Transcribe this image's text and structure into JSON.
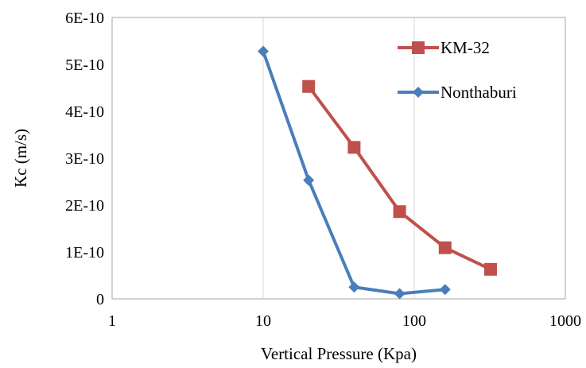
{
  "chart_data": {
    "type": "line",
    "x_scale": "log",
    "xlim": [
      1,
      1000
    ],
    "ylim": [
      0,
      6e-10
    ],
    "x_ticks": [
      1,
      10,
      100,
      1000
    ],
    "x_tick_labels": [
      "1",
      "10",
      "100",
      "1000"
    ],
    "y_ticks": [
      0,
      1e-10,
      2e-10,
      3e-10,
      4e-10,
      5e-10,
      6e-10
    ],
    "y_tick_labels": [
      "0",
      "1E-10",
      "2E-10",
      "3E-10",
      "4E-10",
      "5E-10",
      "6E-10"
    ],
    "xlabel": "Vertical Pressure (Kpa)",
    "ylabel": "Kc (m/s)",
    "grid": "vertical",
    "legend": "top-right",
    "series": [
      {
        "name": "KM-32",
        "color": "#c0504d",
        "marker": "square",
        "x": [
          20,
          40,
          80,
          160,
          320
        ],
        "y": [
          4.53e-10,
          3.23e-10,
          1.86e-10,
          1.09e-10,
          6.3e-11
        ]
      },
      {
        "name": "Nonthaburi",
        "color": "#4a7ebb",
        "marker": "diamond",
        "x": [
          10,
          20,
          40,
          80,
          160
        ],
        "y": [
          5.28e-10,
          2.53e-10,
          2.5e-11,
          1.1e-11,
          2e-11
        ]
      }
    ]
  }
}
